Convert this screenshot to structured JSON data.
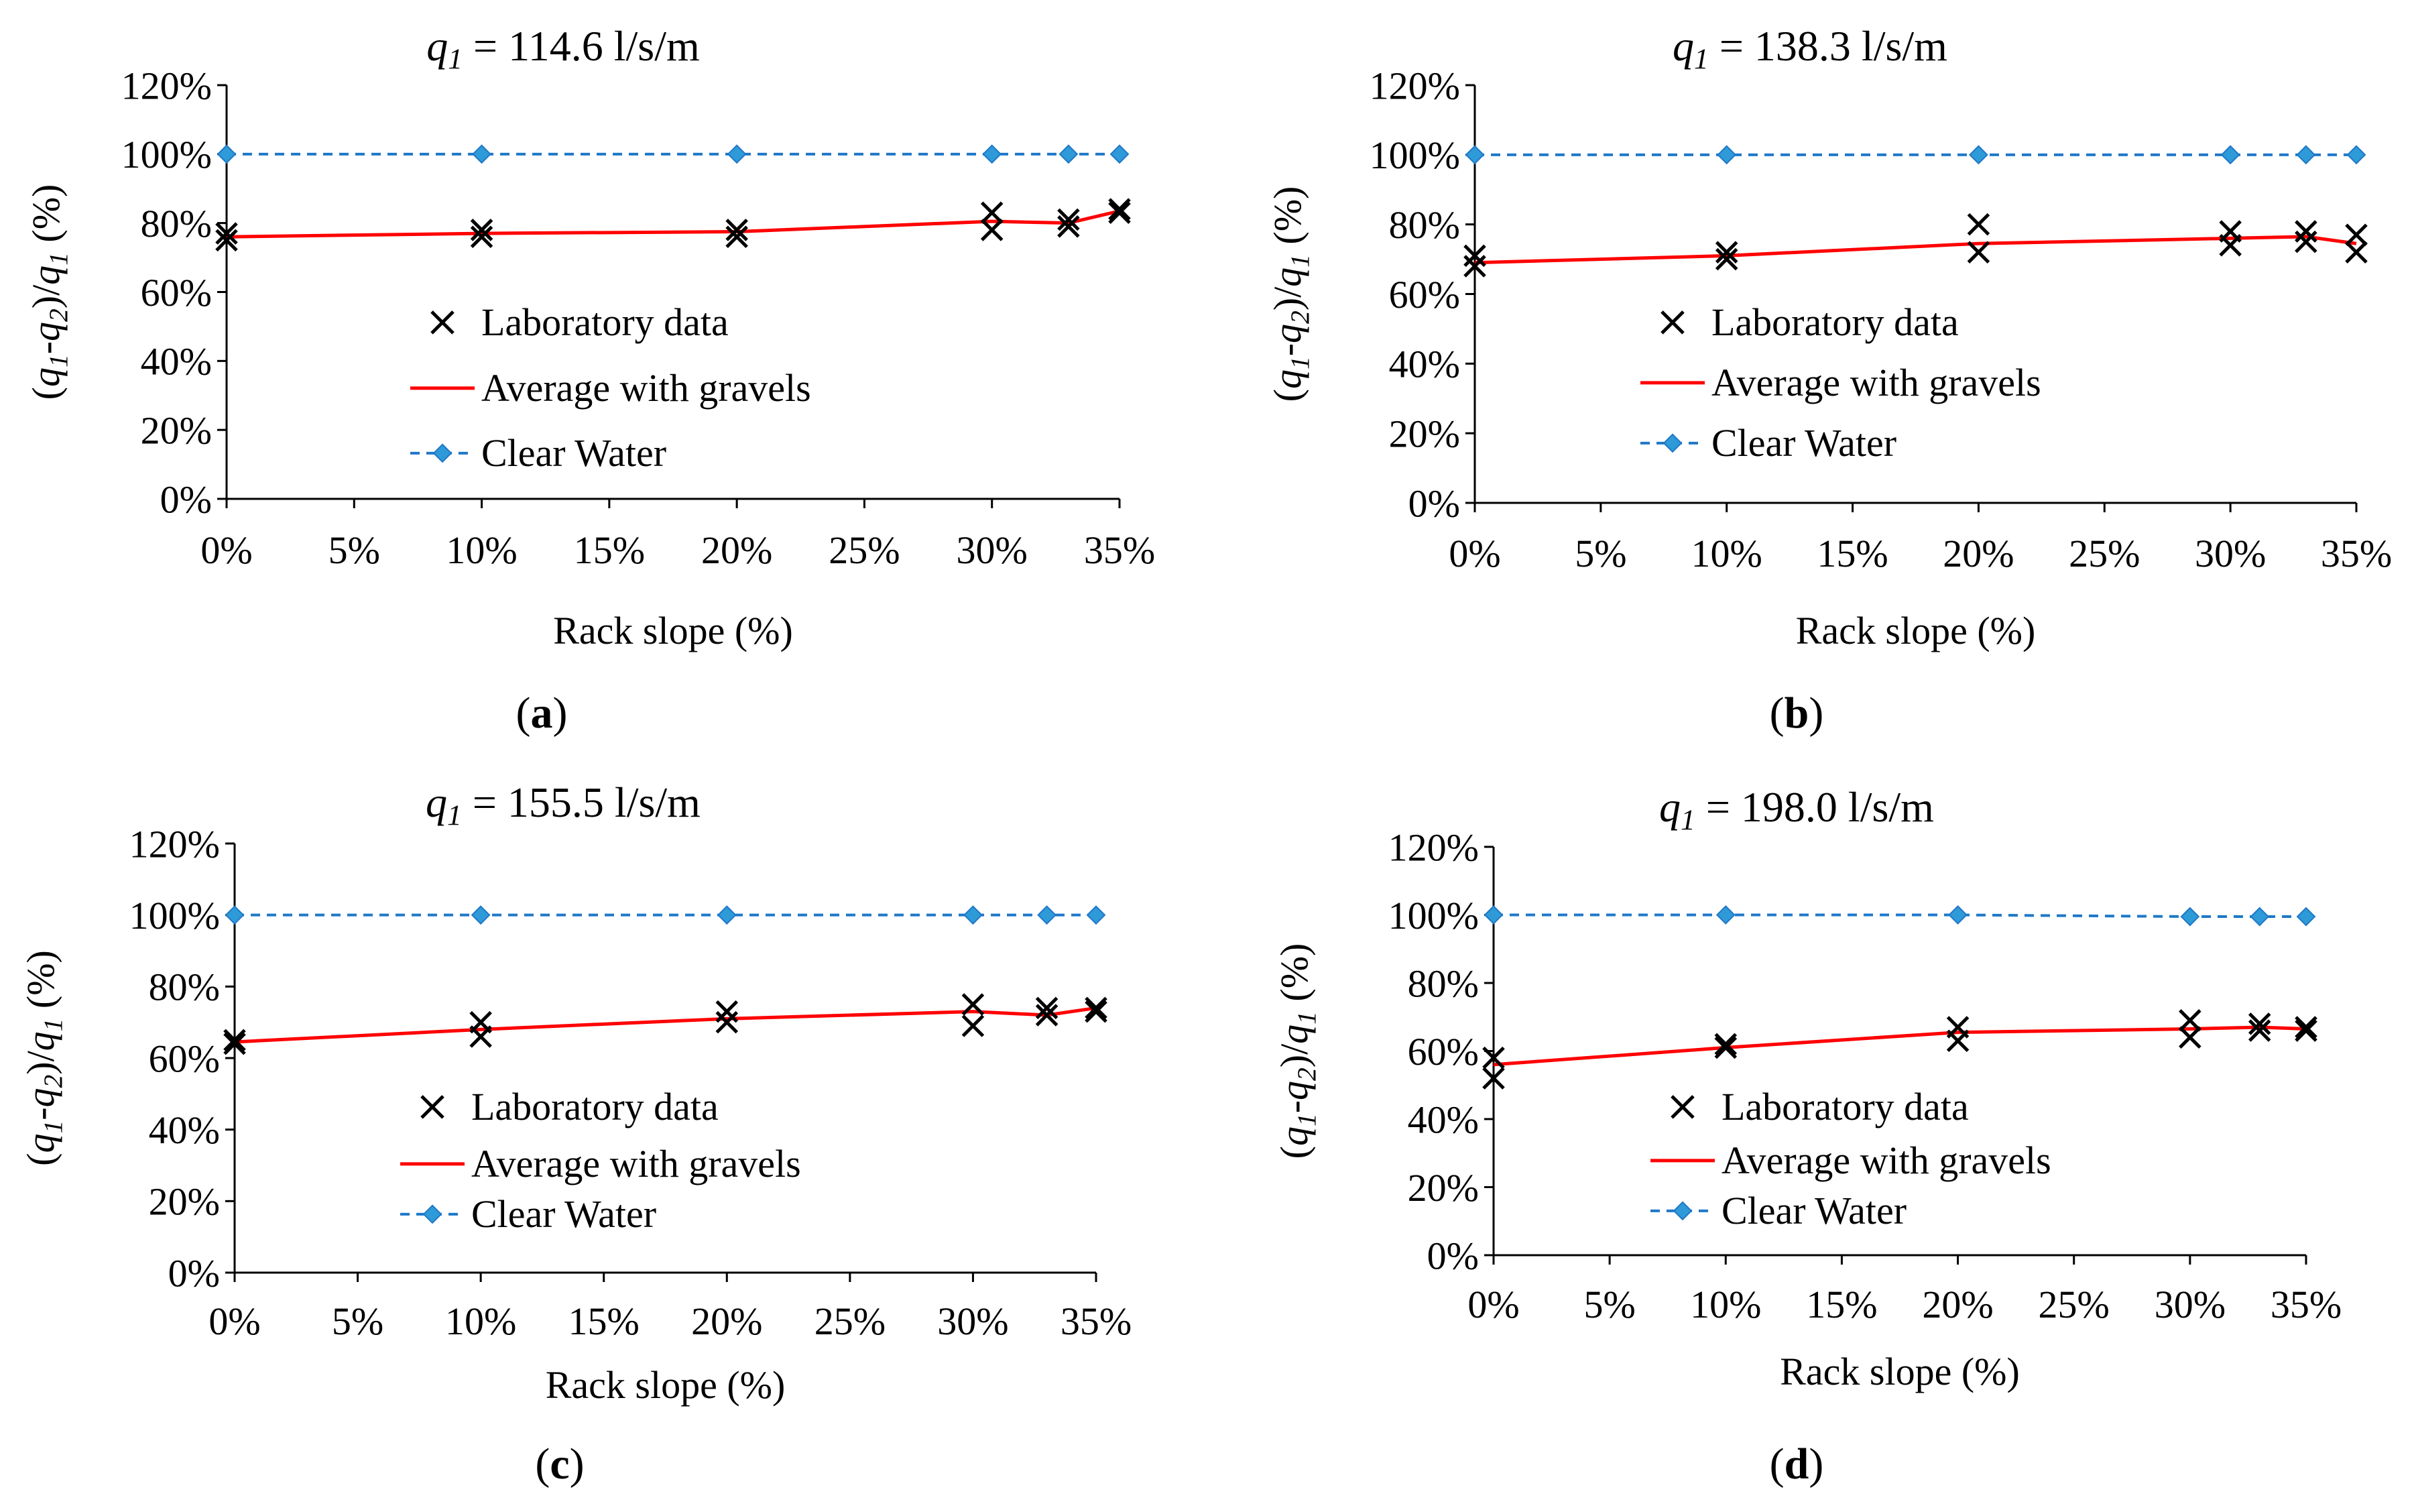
{
  "colors": {
    "lab": "#000000",
    "average": "#ff0000",
    "clear_water": "#1f78c8",
    "clear_water_marker": "#2e9ad8",
    "axis": "#000000"
  },
  "legend_labels": {
    "lab": "Laboratory data",
    "average": "Average with gravels",
    "clear": "Clear Water"
  },
  "chart_data": [
    {
      "type": "scatter+line",
      "panel_label": "a",
      "title_prefix": "q",
      "title_sub": "1",
      "title_rest": " = 114.6 l/s/m",
      "xlabel": "Rack slope (%)",
      "ylabel": "(q1-q2)/q1 (%)",
      "xlim": [
        0,
        35
      ],
      "ylim": [
        0,
        120
      ],
      "x_ticks": [
        0,
        5,
        10,
        15,
        20,
        25,
        30,
        35
      ],
      "y_ticks": [
        0,
        20,
        40,
        60,
        80,
        100,
        120
      ],
      "x_tick_labels": [
        "0%",
        "5%",
        "10%",
        "15%",
        "20%",
        "25%",
        "30%",
        "35%"
      ],
      "y_tick_labels": [
        "0%",
        "20%",
        "40%",
        "60%",
        "80%",
        "100%",
        "120%"
      ],
      "legend_position": "center",
      "series": [
        {
          "name": "Laboratory data",
          "kind": "scatter",
          "points": [
            [
              0,
              75
            ],
            [
              0,
              77
            ],
            [
              10,
              76
            ],
            [
              10,
              78
            ],
            [
              20,
              76
            ],
            [
              20,
              78
            ],
            [
              30,
              78
            ],
            [
              30,
              83
            ],
            [
              33,
              79
            ],
            [
              33,
              81
            ],
            [
              35,
              83
            ],
            [
              35,
              84
            ]
          ]
        },
        {
          "name": "Average with gravels",
          "kind": "line",
          "points": [
            [
              0,
              76
            ],
            [
              10,
              77
            ],
            [
              20,
              77.5
            ],
            [
              30,
              80.5
            ],
            [
              33,
              80
            ],
            [
              35,
              83.5
            ]
          ]
        },
        {
          "name": "Clear Water",
          "kind": "line-marker",
          "points": [
            [
              0,
              100
            ],
            [
              10,
              100
            ],
            [
              20,
              100
            ],
            [
              30,
              100
            ],
            [
              33,
              100
            ],
            [
              35,
              100
            ]
          ]
        }
      ]
    },
    {
      "type": "scatter+line",
      "panel_label": "b",
      "title_prefix": "q",
      "title_sub": "1",
      "title_rest": " = 138.3 l/s/m",
      "xlabel": "Rack slope (%)",
      "ylabel": "(q1-q2)/q1 (%)",
      "xlim": [
        0,
        35
      ],
      "ylim": [
        0,
        120
      ],
      "x_ticks": [
        0,
        5,
        10,
        15,
        20,
        25,
        30,
        35
      ],
      "y_ticks": [
        0,
        20,
        40,
        60,
        80,
        100,
        120
      ],
      "x_tick_labels": [
        "0%",
        "5%",
        "10%",
        "15%",
        "20%",
        "25%",
        "30%",
        "35%"
      ],
      "y_tick_labels": [
        "0%",
        "20%",
        "40%",
        "60%",
        "80%",
        "100%",
        "120%"
      ],
      "legend_position": "center",
      "series": [
        {
          "name": "Laboratory data",
          "kind": "scatter",
          "points": [
            [
              0,
              68
            ],
            [
              0,
              71
            ],
            [
              10,
              70
            ],
            [
              10,
              72
            ],
            [
              20,
              72
            ],
            [
              20,
              80
            ],
            [
              30,
              74
            ],
            [
              30,
              78
            ],
            [
              33,
              75
            ],
            [
              33,
              78
            ],
            [
              35,
              72
            ],
            [
              35,
              77
            ]
          ]
        },
        {
          "name": "Average with gravels",
          "kind": "line",
          "points": [
            [
              0,
              69
            ],
            [
              10,
              71
            ],
            [
              20,
              74.5
            ],
            [
              30,
              76
            ],
            [
              33,
              76.5
            ],
            [
              35,
              74.5
            ]
          ]
        },
        {
          "name": "Clear Water",
          "kind": "line-marker",
          "points": [
            [
              0,
              100
            ],
            [
              10,
              100
            ],
            [
              20,
              100
            ],
            [
              30,
              100
            ],
            [
              33,
              100
            ],
            [
              35,
              100
            ]
          ]
        }
      ]
    },
    {
      "type": "scatter+line",
      "panel_label": "c",
      "title_prefix": "q",
      "title_sub": "1",
      "title_rest": " = 155.5 l/s/m",
      "xlabel": "Rack slope (%)",
      "ylabel": "(q1-q2)/q1 (%)",
      "xlim": [
        0,
        35
      ],
      "ylim": [
        0,
        120
      ],
      "x_ticks": [
        0,
        5,
        10,
        15,
        20,
        25,
        30,
        35
      ],
      "y_ticks": [
        0,
        20,
        40,
        60,
        80,
        100,
        120
      ],
      "x_tick_labels": [
        "0%",
        "5%",
        "10%",
        "15%",
        "20%",
        "25%",
        "30%",
        "35%"
      ],
      "y_tick_labels": [
        "0%",
        "20%",
        "40%",
        "60%",
        "80%",
        "100%",
        "120%"
      ],
      "legend_position": "center",
      "series": [
        {
          "name": "Laboratory data",
          "kind": "scatter",
          "points": [
            [
              0,
              64
            ],
            [
              0,
              65
            ],
            [
              10,
              66
            ],
            [
              10,
              70
            ],
            [
              20,
              70
            ],
            [
              20,
              73
            ],
            [
              30,
              69
            ],
            [
              30,
              75
            ],
            [
              33,
              72
            ],
            [
              33,
              74
            ],
            [
              35,
              73
            ],
            [
              35,
              74
            ]
          ]
        },
        {
          "name": "Average with gravels",
          "kind": "line",
          "points": [
            [
              0,
              64.5
            ],
            [
              10,
              68
            ],
            [
              20,
              71
            ],
            [
              30,
              73
            ],
            [
              33,
              72
            ],
            [
              35,
              74
            ]
          ]
        },
        {
          "name": "Clear Water",
          "kind": "line-marker",
          "points": [
            [
              0,
              100
            ],
            [
              10,
              100
            ],
            [
              20,
              100
            ],
            [
              30,
              100
            ],
            [
              33,
              100
            ],
            [
              35,
              100
            ]
          ]
        }
      ]
    },
    {
      "type": "scatter+line",
      "panel_label": "d",
      "title_prefix": "q",
      "title_sub": "1",
      "title_rest": " = 198.0 l/s/m",
      "xlabel": "Rack slope (%)",
      "ylabel": "(q1-q2)/q1 (%)",
      "xlim": [
        0,
        35
      ],
      "ylim": [
        0,
        120
      ],
      "x_ticks": [
        0,
        5,
        10,
        15,
        20,
        25,
        30,
        35
      ],
      "y_ticks": [
        0,
        20,
        40,
        60,
        80,
        100,
        120
      ],
      "x_tick_labels": [
        "0%",
        "5%",
        "10%",
        "15%",
        "20%",
        "25%",
        "30%",
        "35%"
      ],
      "y_tick_labels": [
        "0%",
        "20%",
        "40%",
        "60%",
        "80%",
        "100%",
        "120%"
      ],
      "legend_position": "center",
      "series": [
        {
          "name": "Laboratory data",
          "kind": "scatter",
          "points": [
            [
              0,
              52
            ],
            [
              0,
              58
            ],
            [
              10,
              61
            ],
            [
              10,
              62
            ],
            [
              20,
              63
            ],
            [
              20,
              67
            ],
            [
              30,
              64
            ],
            [
              30,
              69
            ],
            [
              33,
              66
            ],
            [
              33,
              68
            ],
            [
              35,
              66
            ],
            [
              35,
              67
            ]
          ]
        },
        {
          "name": "Average with gravels",
          "kind": "line",
          "points": [
            [
              0,
              56
            ],
            [
              10,
              61
            ],
            [
              20,
              65.5
            ],
            [
              30,
              66.5
            ],
            [
              33,
              67
            ],
            [
              35,
              66.5
            ]
          ]
        },
        {
          "name": "Clear Water",
          "kind": "line-marker",
          "points": [
            [
              0,
              100
            ],
            [
              10,
              100
            ],
            [
              20,
              100
            ],
            [
              30,
              99.5
            ],
            [
              33,
              99.5
            ],
            [
              35,
              99.5
            ]
          ]
        }
      ]
    }
  ]
}
